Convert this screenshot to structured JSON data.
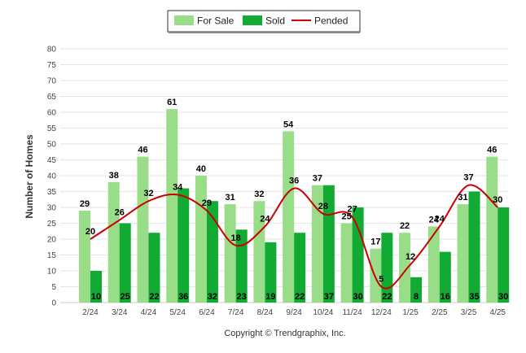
{
  "chart_data": {
    "type": "bar",
    "ylabel": "Number of Homes",
    "ylim": [
      0,
      80
    ],
    "yticks": [
      0,
      5,
      10,
      15,
      20,
      25,
      30,
      35,
      40,
      45,
      50,
      55,
      60,
      65,
      70,
      75,
      80
    ],
    "grid": true,
    "legend_position": "top-center",
    "categories": [
      "2/24",
      "3/24",
      "4/24",
      "5/24",
      "6/24",
      "7/24",
      "8/24",
      "9/24",
      "10/24",
      "11/24",
      "12/24",
      "1/25",
      "2/25",
      "3/25",
      "4/25"
    ],
    "series": [
      {
        "name": "For Sale",
        "type": "bar",
        "color": "#99dd88",
        "values": [
          29,
          38,
          46,
          61,
          40,
          31,
          32,
          54,
          37,
          25,
          17,
          22,
          24,
          31,
          46
        ]
      },
      {
        "name": "Sold",
        "type": "bar",
        "color": "#11aa33",
        "values": [
          10,
          25,
          22,
          36,
          32,
          23,
          19,
          22,
          37,
          30,
          22,
          8,
          16,
          35,
          30
        ]
      },
      {
        "name": "Pended",
        "type": "line",
        "color": "#cc0000",
        "values": [
          20,
          26,
          32,
          34,
          29,
          18,
          24,
          36,
          28,
          27,
          5,
          12,
          24,
          37,
          30
        ]
      }
    ]
  },
  "footer": {
    "copyright": "Copyright © Trendgraphix, Inc."
  }
}
